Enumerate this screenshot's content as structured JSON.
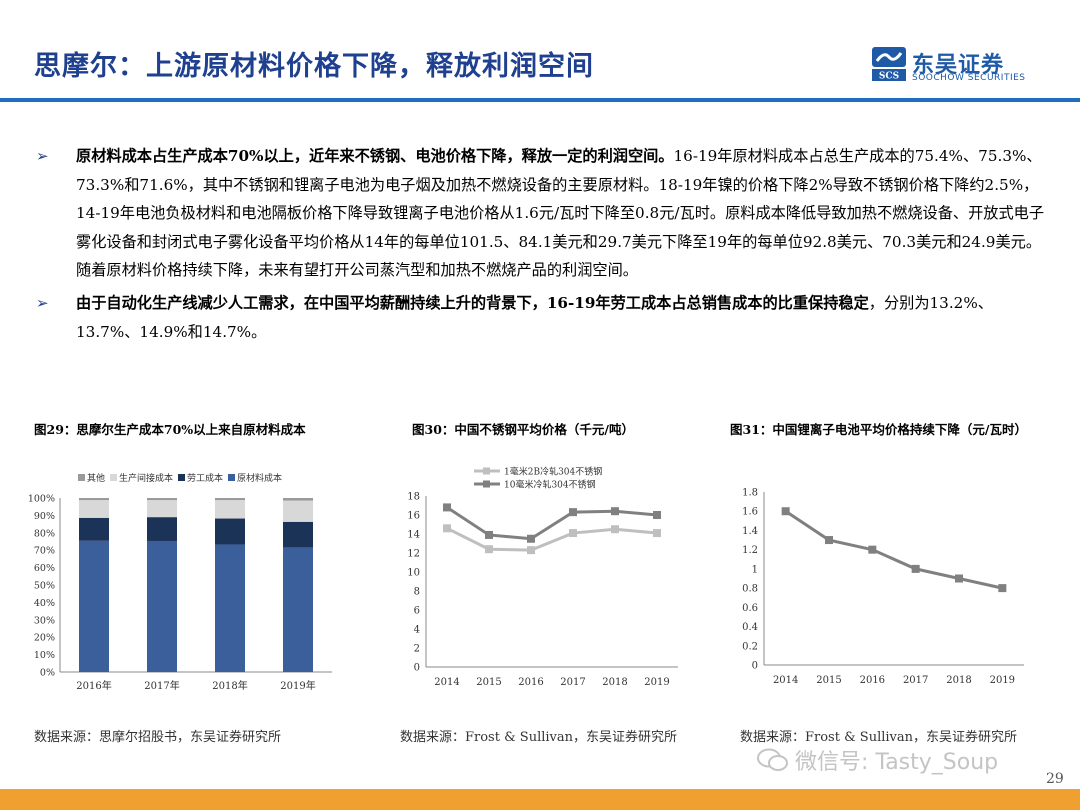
{
  "header": {
    "title": "思摩尔：上游原材料价格下降，释放利润空间",
    "logo_cn": "东吴证券",
    "logo_en": "SOOCHOW SECURITIES",
    "logo_mark_text": "SCS",
    "brand_color": "#1f5aa6"
  },
  "bullets": [
    {
      "bold": "原材料成本占生产成本70%以上，近年来不锈钢、电池价格下降，释放一定的利润空间。",
      "text": "16-19年原材料成本占总生产成本的75.4%、75.3%、73.3%和71.6%，其中不锈钢和锂离子电池为电子烟及加热不燃烧设备的主要原材料。18-19年镍的价格下降2%导致不锈钢价格下降约2.5%，14-19年电池负极材料和电池隔板价格下降导致锂离子电池价格从1.6元/瓦时下降至0.8元/瓦时。原料成本降低导致加热不燃烧设备、开放式电子雾化设备和封闭式电子雾化设备平均价格从14年的每单位101.5、84.1美元和29.7美元下降至19年的每单位92.8美元、70.3美元和24.9美元。随着原材料价格持续下降，未来有望打开公司蒸汽型和加热不燃烧产品的利润空间。"
    },
    {
      "bold": "由于自动化生产线减少人工需求，在中国平均薪酬持续上升的背景下，16-19年劳工成本占总销售成本的比重保持稳定",
      "text": "，分别为13.2%、13.7%、14.9%和14.7%。"
    }
  ],
  "charts": [
    {
      "caption": "图29：思摩尔生产成本70%以上来自原材料成本",
      "source": "数据来源：思摩尔招股书，东吴证券研究所"
    },
    {
      "caption": "图30：中国不锈钢平均价格（千元/吨）",
      "source": "数据来源：Frost & Sullivan，东吴证券研究所"
    },
    {
      "caption": "图31：中国锂离子电池平均价格持续下降（元/瓦时）",
      "source": "数据来源：Frost & Sullivan，东吴证券研究所"
    }
  ],
  "chart_data": [
    {
      "type": "bar",
      "stacked": true,
      "categories": [
        "2016年",
        "2017年",
        "2018年",
        "2019年"
      ],
      "series": [
        {
          "name": "原材料成本",
          "values": [
            75.4,
            75.3,
            73.3,
            71.6
          ],
          "color": "#3a5f9a"
        },
        {
          "name": "劳工成本",
          "values": [
            13.2,
            13.7,
            14.9,
            14.7
          ],
          "color": "#1c3358"
        },
        {
          "name": "生产间接成本",
          "values": [
            10.2,
            9.8,
            10.6,
            12.2
          ],
          "color": "#d8d8d8"
        },
        {
          "name": "其他",
          "values": [
            1.2,
            1.2,
            1.2,
            1.5
          ],
          "color": "#9a9a9a"
        }
      ],
      "legend_order": [
        "其他",
        "生产间接成本",
        "劳工成本",
        "原材料成本"
      ],
      "ylim": [
        0,
        100
      ],
      "yticks": [
        "0%",
        "10%",
        "20%",
        "30%",
        "40%",
        "50%",
        "60%",
        "70%",
        "80%",
        "90%",
        "100%"
      ],
      "legend_position": "top-left"
    },
    {
      "type": "line",
      "x": [
        "2014",
        "2015",
        "2016",
        "2017",
        "2018",
        "2019"
      ],
      "series": [
        {
          "name": "1毫米2B冷轧304不锈钢",
          "values": [
            14.6,
            12.4,
            12.3,
            14.1,
            14.5,
            14.1
          ],
          "color": "#bfbfbf"
        },
        {
          "name": "10毫米冷轧304不锈钢",
          "values": [
            16.8,
            13.9,
            13.5,
            16.3,
            16.4,
            16.0
          ],
          "color": "#808080"
        }
      ],
      "ylim": [
        0,
        18
      ],
      "yticks": [
        0,
        2,
        4,
        6,
        8,
        10,
        12,
        14,
        16,
        18
      ],
      "legend_position": "top"
    },
    {
      "type": "line",
      "x": [
        "2014",
        "2015",
        "2016",
        "2017",
        "2018",
        "2019"
      ],
      "series": [
        {
          "values": [
            1.6,
            1.3,
            1.2,
            1.0,
            0.9,
            0.8
          ],
          "color": "#808080"
        }
      ],
      "ylim": [
        0,
        1.8
      ],
      "yticks": [
        "0",
        "0.2",
        "0.4",
        "0.6",
        "0.8",
        "1",
        "1.2",
        "1.4",
        "1.6",
        "1.8"
      ]
    }
  ],
  "watermark": "微信号: Tasty_Soup",
  "page_number": "29",
  "colors": {
    "title": "#1f3f8f",
    "rule": "#1f6fbf",
    "footer": "#f0a030"
  }
}
